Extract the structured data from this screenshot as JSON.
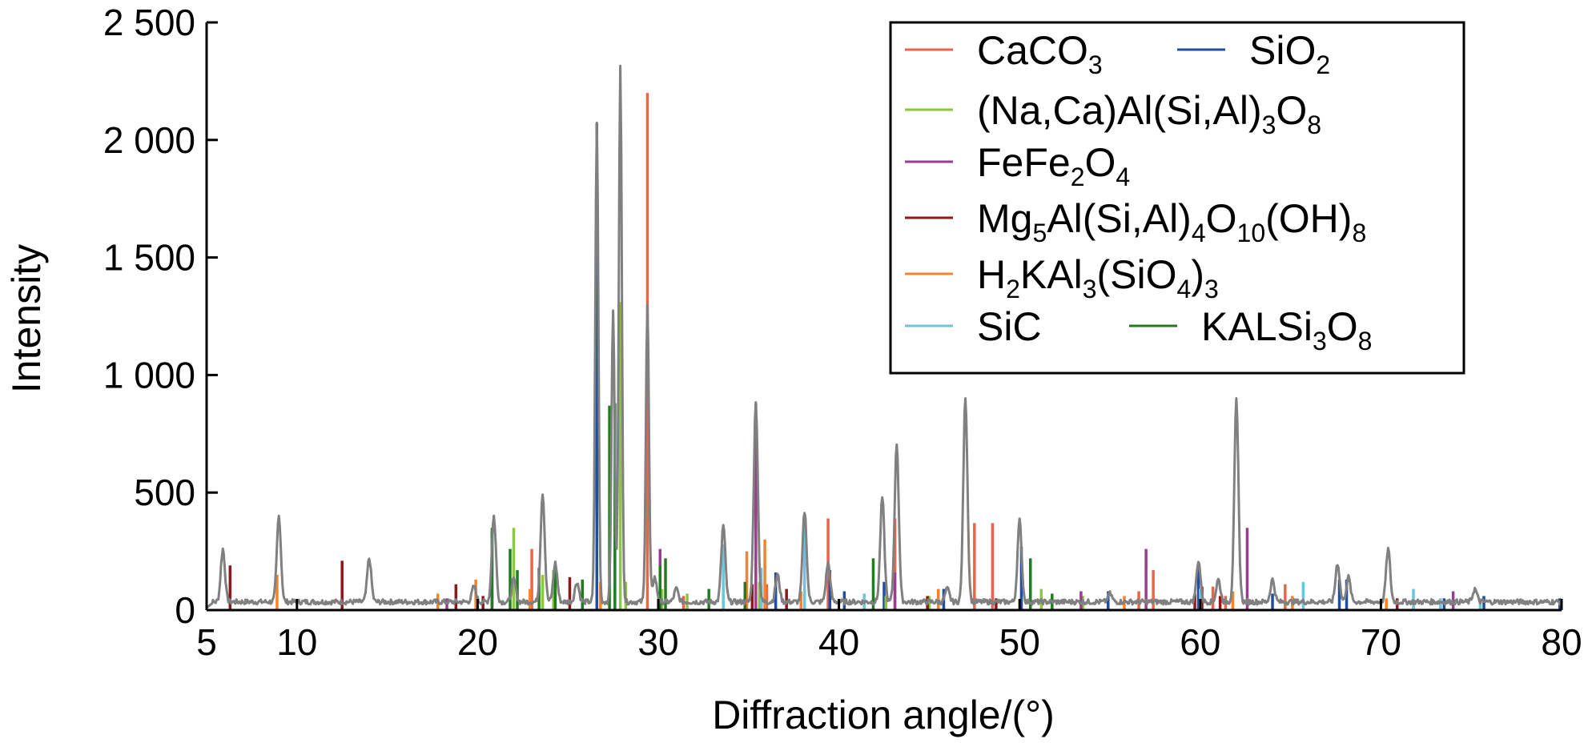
{
  "chart_data": {
    "type": "line",
    "xlabel": "Diffraction angle/(°)",
    "ylabel": "Intensity",
    "xlim": [
      5,
      80
    ],
    "ylim": [
      0,
      2500
    ],
    "x_ticks": [
      5,
      10,
      20,
      30,
      40,
      50,
      60,
      70,
      80
    ],
    "x_tick_labels": [
      "5",
      "10",
      "20",
      "30",
      "40",
      "50",
      "60",
      "70",
      "80"
    ],
    "y_ticks": [
      0,
      500,
      1000,
      1500,
      2000,
      2500
    ],
    "y_tick_labels": [
      "0",
      "500",
      "1 000",
      "1 500",
      "2 000",
      "2 500"
    ],
    "grid": false,
    "legend_position": "top-right",
    "pattern": {
      "color": "#808080",
      "baseline": 35,
      "peaks": [
        {
          "x": 5.9,
          "y": 260
        },
        {
          "x": 9.0,
          "y": 400
        },
        {
          "x": 14.0,
          "y": 220
        },
        {
          "x": 19.8,
          "y": 100
        },
        {
          "x": 20.9,
          "y": 400
        },
        {
          "x": 22.0,
          "y": 130
        },
        {
          "x": 23.6,
          "y": 500
        },
        {
          "x": 24.3,
          "y": 200
        },
        {
          "x": 25.5,
          "y": 120
        },
        {
          "x": 26.6,
          "y": 2080
        },
        {
          "x": 27.5,
          "y": 1280
        },
        {
          "x": 27.9,
          "y": 2310
        },
        {
          "x": 29.4,
          "y": 1300
        },
        {
          "x": 29.8,
          "y": 140
        },
        {
          "x": 31.0,
          "y": 90
        },
        {
          "x": 33.6,
          "y": 360
        },
        {
          "x": 35.4,
          "y": 880
        },
        {
          "x": 36.6,
          "y": 150
        },
        {
          "x": 38.1,
          "y": 420
        },
        {
          "x": 39.4,
          "y": 200
        },
        {
          "x": 42.4,
          "y": 480
        },
        {
          "x": 43.2,
          "y": 710
        },
        {
          "x": 46.0,
          "y": 90
        },
        {
          "x": 47.0,
          "y": 910
        },
        {
          "x": 50.0,
          "y": 380
        },
        {
          "x": 55.0,
          "y": 70
        },
        {
          "x": 59.9,
          "y": 210
        },
        {
          "x": 61.0,
          "y": 130
        },
        {
          "x": 62.0,
          "y": 890
        },
        {
          "x": 64.0,
          "y": 130
        },
        {
          "x": 67.6,
          "y": 200
        },
        {
          "x": 68.2,
          "y": 140
        },
        {
          "x": 70.4,
          "y": 260
        },
        {
          "x": 75.2,
          "y": 90
        }
      ]
    },
    "series": [
      {
        "name": "CaCO3",
        "label_parts": [
          [
            "CaCO",
            ""
          ],
          [
            "3",
            "sub"
          ]
        ],
        "color": "#f0624a",
        "peaks": [
          {
            "x": 23.0,
            "y": 260
          },
          {
            "x": 29.4,
            "y": 2200
          },
          {
            "x": 31.4,
            "y": 60
          },
          {
            "x": 36.0,
            "y": 110
          },
          {
            "x": 39.4,
            "y": 390
          },
          {
            "x": 43.1,
            "y": 390
          },
          {
            "x": 47.5,
            "y": 370
          },
          {
            "x": 48.5,
            "y": 370
          },
          {
            "x": 56.6,
            "y": 80
          },
          {
            "x": 57.4,
            "y": 170
          },
          {
            "x": 60.7,
            "y": 100
          },
          {
            "x": 61.4,
            "y": 60
          },
          {
            "x": 64.7,
            "y": 110
          }
        ]
      },
      {
        "name": "SiO2",
        "label_parts": [
          [
            "SiO",
            ""
          ],
          [
            "2",
            "sub"
          ]
        ],
        "color": "#1f4e9e",
        "peaks": [
          {
            "x": 20.8,
            "y": 330
          },
          {
            "x": 26.6,
            "y": 2070
          },
          {
            "x": 36.5,
            "y": 160
          },
          {
            "x": 39.5,
            "y": 170
          },
          {
            "x": 40.3,
            "y": 80
          },
          {
            "x": 42.5,
            "y": 120
          },
          {
            "x": 45.8,
            "y": 90
          },
          {
            "x": 50.1,
            "y": 270
          },
          {
            "x": 54.9,
            "y": 80
          },
          {
            "x": 59.9,
            "y": 190
          },
          {
            "x": 64.0,
            "y": 70
          },
          {
            "x": 67.7,
            "y": 130
          },
          {
            "x": 68.1,
            "y": 130
          },
          {
            "x": 73.5,
            "y": 50
          },
          {
            "x": 75.7,
            "y": 60
          },
          {
            "x": 79.9,
            "y": 50
          }
        ]
      },
      {
        "name": "(Na,Ca)Al(Si,Al)3O8",
        "label_parts": [
          [
            "(Na,Ca)Al(Si,Al)",
            ""
          ],
          [
            "3",
            "sub"
          ],
          [
            "O",
            ""
          ],
          [
            "8",
            "sub"
          ]
        ],
        "color": "#8dc63f",
        "peaks": [
          {
            "x": 22.0,
            "y": 350
          },
          {
            "x": 23.6,
            "y": 150
          },
          {
            "x": 24.2,
            "y": 170
          },
          {
            "x": 27.9,
            "y": 1310
          },
          {
            "x": 28.2,
            "y": 120
          },
          {
            "x": 30.2,
            "y": 90
          },
          {
            "x": 31.6,
            "y": 70
          },
          {
            "x": 35.6,
            "y": 120
          },
          {
            "x": 42.6,
            "y": 60
          },
          {
            "x": 45.0,
            "y": 60
          },
          {
            "x": 51.2,
            "y": 90
          },
          {
            "x": 53.5,
            "y": 60
          }
        ]
      },
      {
        "name": "FeFe2O4",
        "label_parts": [
          [
            "FeFe",
            ""
          ],
          [
            "2",
            "sub"
          ],
          [
            "O",
            ""
          ],
          [
            "4",
            "sub"
          ]
        ],
        "color": "#9b3d8f",
        "peaks": [
          {
            "x": 18.3,
            "y": 50
          },
          {
            "x": 30.1,
            "y": 260
          },
          {
            "x": 35.4,
            "y": 880
          },
          {
            "x": 43.1,
            "y": 160
          },
          {
            "x": 53.4,
            "y": 80
          },
          {
            "x": 57.0,
            "y": 260
          },
          {
            "x": 62.6,
            "y": 350
          },
          {
            "x": 74.0,
            "y": 80
          }
        ]
      },
      {
        "name": "Mg5Al(Si,Al)4O10(OH)8",
        "label_parts": [
          [
            "Mg",
            ""
          ],
          [
            "5",
            "sub"
          ],
          [
            "Al(Si,Al)",
            ""
          ],
          [
            "4",
            "sub"
          ],
          [
            "O",
            ""
          ],
          [
            "10",
            "sub"
          ],
          [
            "(OH)",
            ""
          ],
          [
            "8",
            "sub"
          ]
        ],
        "color": "#8b1a1a",
        "peaks": [
          {
            "x": 6.3,
            "y": 190
          },
          {
            "x": 12.5,
            "y": 210
          },
          {
            "x": 18.8,
            "y": 110
          },
          {
            "x": 20.3,
            "y": 60
          },
          {
            "x": 25.1,
            "y": 140
          },
          {
            "x": 34.8,
            "y": 60
          },
          {
            "x": 35.2,
            "y": 110
          },
          {
            "x": 35.7,
            "y": 120
          },
          {
            "x": 37.1,
            "y": 90
          },
          {
            "x": 44.9,
            "y": 60
          },
          {
            "x": 48.7,
            "y": 50
          },
          {
            "x": 59.7,
            "y": 70
          },
          {
            "x": 60.1,
            "y": 100
          },
          {
            "x": 61.1,
            "y": 60
          },
          {
            "x": 70.9,
            "y": 50
          }
        ]
      },
      {
        "name": "H2KAl3(SiO4)3",
        "label_parts": [
          [
            "H",
            ""
          ],
          [
            "2",
            "sub"
          ],
          [
            "KAl",
            ""
          ],
          [
            "3",
            "sub"
          ],
          [
            "(SiO",
            ""
          ],
          [
            "4",
            "sub"
          ],
          [
            ")",
            ""
          ],
          [
            "3",
            "sub"
          ]
        ],
        "color": "#f5832a",
        "peaks": [
          {
            "x": 8.9,
            "y": 150
          },
          {
            "x": 17.8,
            "y": 70
          },
          {
            "x": 19.9,
            "y": 130
          },
          {
            "x": 22.9,
            "y": 90
          },
          {
            "x": 26.8,
            "y": 120
          },
          {
            "x": 34.9,
            "y": 250
          },
          {
            "x": 35.9,
            "y": 300
          },
          {
            "x": 37.9,
            "y": 80
          },
          {
            "x": 45.5,
            "y": 90
          },
          {
            "x": 55.8,
            "y": 60
          },
          {
            "x": 61.8,
            "y": 80
          },
          {
            "x": 65.1,
            "y": 60
          },
          {
            "x": 70.3,
            "y": 50
          }
        ]
      },
      {
        "name": "SiC",
        "label_parts": [
          [
            "SiC",
            ""
          ]
        ],
        "color": "#6cc5e0",
        "peaks": [
          {
            "x": 33.6,
            "y": 280
          },
          {
            "x": 35.7,
            "y": 180
          },
          {
            "x": 38.1,
            "y": 400
          },
          {
            "x": 41.4,
            "y": 70
          },
          {
            "x": 60.0,
            "y": 90
          },
          {
            "x": 65.7,
            "y": 120
          },
          {
            "x": 71.8,
            "y": 90
          },
          {
            "x": 73.3,
            "y": 50
          },
          {
            "x": 75.5,
            "y": 50
          }
        ]
      },
      {
        "name": "KALSi3O8",
        "label_parts": [
          [
            "KALSi",
            ""
          ],
          [
            "3",
            "sub"
          ],
          [
            "O",
            ""
          ],
          [
            "8",
            "sub"
          ]
        ],
        "color": "#1e7d1e",
        "peaks": [
          {
            "x": 20.8,
            "y": 350
          },
          {
            "x": 21.8,
            "y": 260
          },
          {
            "x": 22.2,
            "y": 170
          },
          {
            "x": 23.4,
            "y": 180
          },
          {
            "x": 24.3,
            "y": 180
          },
          {
            "x": 25.8,
            "y": 130
          },
          {
            "x": 27.3,
            "y": 870
          },
          {
            "x": 27.6,
            "y": 880
          },
          {
            "x": 30.1,
            "y": 190
          },
          {
            "x": 30.4,
            "y": 220
          },
          {
            "x": 32.8,
            "y": 90
          },
          {
            "x": 34.8,
            "y": 120
          },
          {
            "x": 41.9,
            "y": 220
          },
          {
            "x": 50.6,
            "y": 220
          },
          {
            "x": 51.8,
            "y": 70
          }
        ]
      }
    ]
  }
}
